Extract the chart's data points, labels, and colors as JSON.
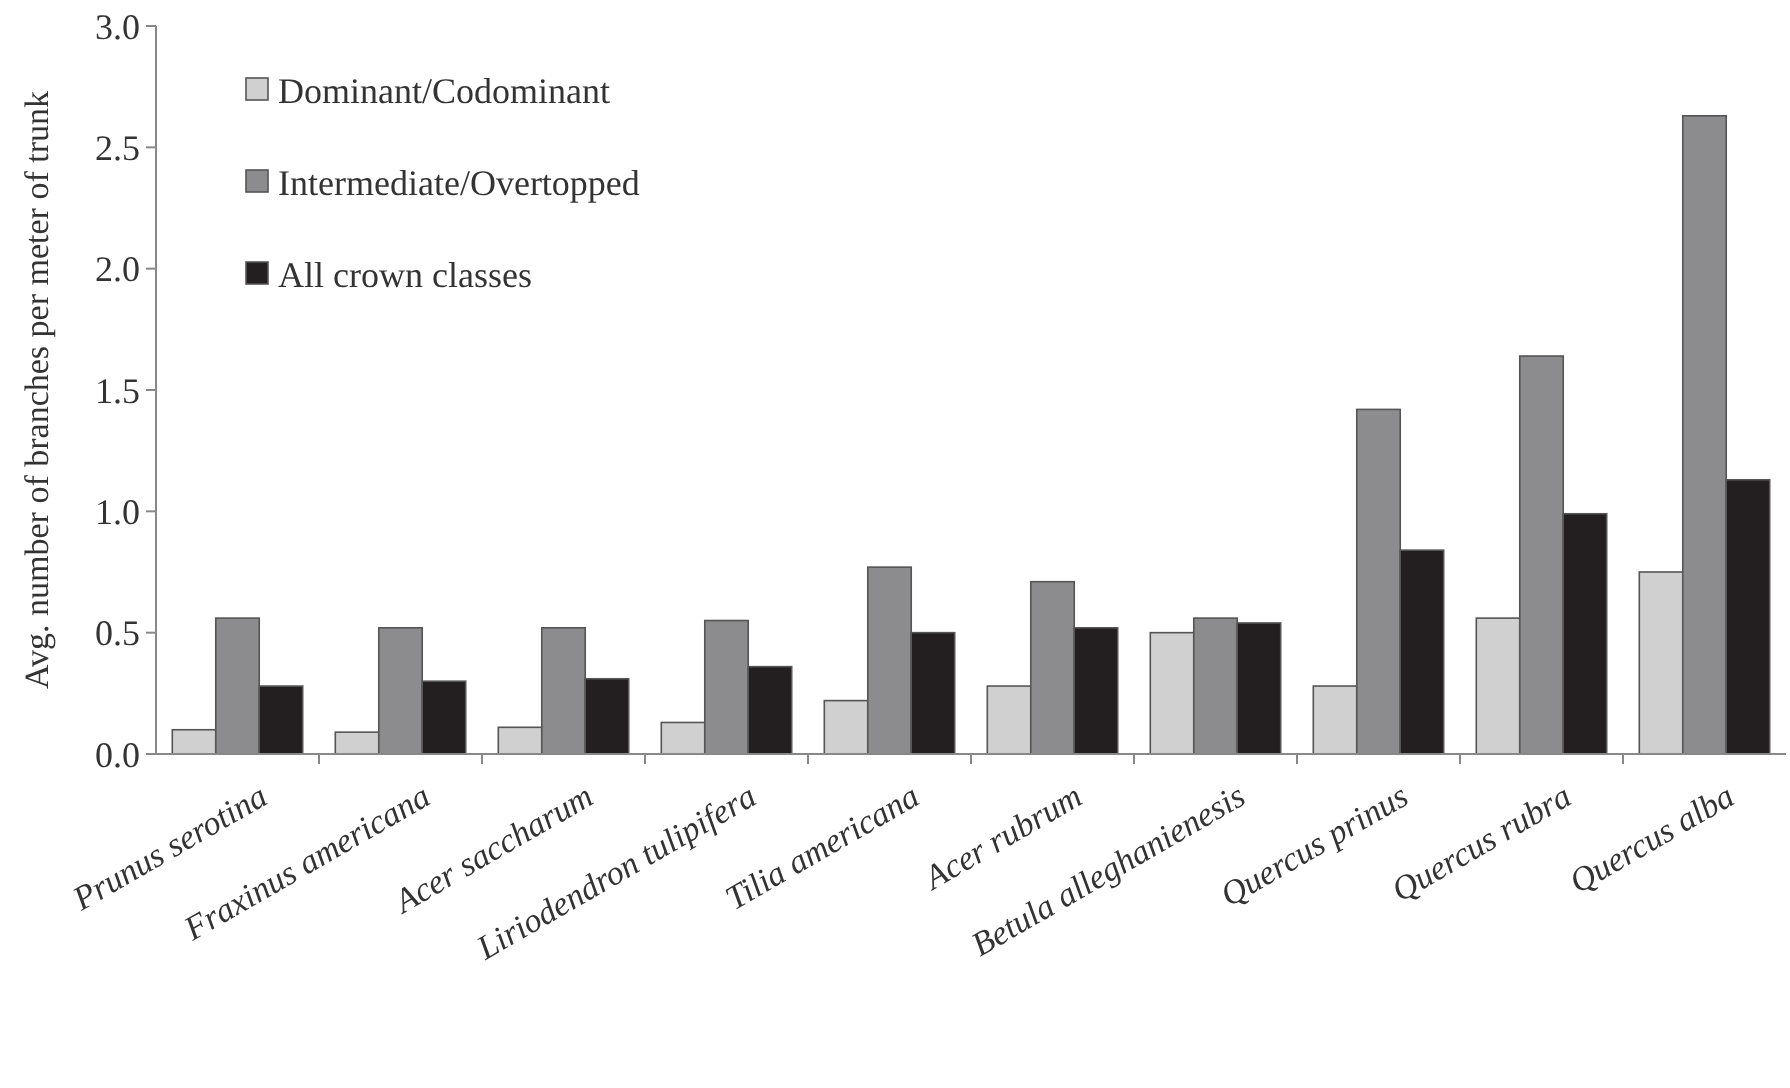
{
  "chart_data": {
    "type": "bar",
    "ylabel": "Avg. number of branches per meter of trunk",
    "categories": [
      "Prunus serotina",
      "Fraxinus americana",
      "Acer saccharum",
      "Liriodendron tulipifera",
      "Tilia americana",
      "Acer rubrum",
      "Betula alleghanienesis",
      "Quercus prinus",
      "Quercus rubra",
      "Quercus alba"
    ],
    "series": [
      {
        "name": "Dominant/Codominant",
        "color": "#d0d0d0",
        "values": [
          0.1,
          0.09,
          0.11,
          0.13,
          0.22,
          0.28,
          0.5,
          0.28,
          0.56,
          0.75
        ]
      },
      {
        "name": "Intermediate/Overtopped",
        "color": "#8c8c8e",
        "values": [
          0.56,
          0.52,
          0.52,
          0.55,
          0.77,
          0.71,
          0.56,
          1.42,
          1.64,
          2.63
        ]
      },
      {
        "name": "All crown classes",
        "color": "#231f20",
        "values": [
          0.28,
          0.3,
          0.31,
          0.36,
          0.5,
          0.52,
          0.54,
          0.84,
          0.99,
          1.13
        ]
      }
    ],
    "ylim": [
      0,
      3.0
    ],
    "yticks": [
      {
        "value": 0,
        "label": "0.0"
      },
      0.5,
      {
        "value": 1,
        "label": "1.0"
      },
      1.5,
      {
        "value": 2,
        "label": "2.0"
      },
      2.5,
      {
        "value": 3,
        "label": "3.0"
      }
    ],
    "grid": false,
    "legend": "top left"
  }
}
